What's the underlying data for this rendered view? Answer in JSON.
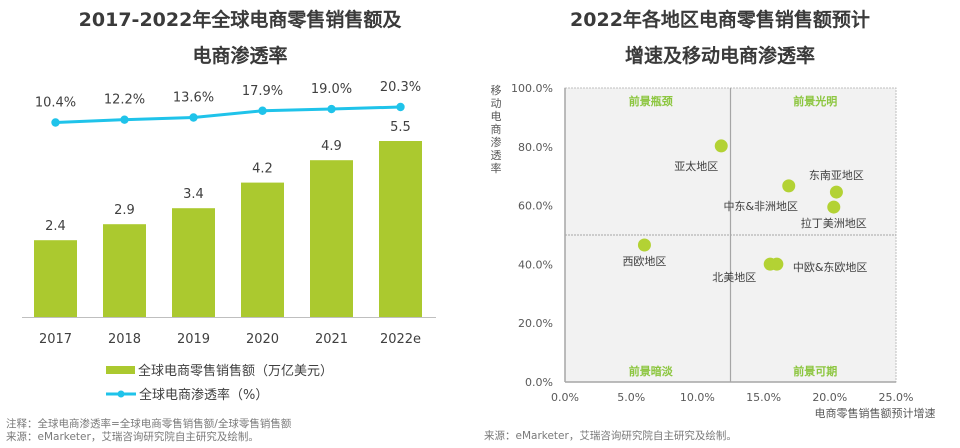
{
  "left": {
    "title_line1": "2017-2022年全球电商零售销售额及",
    "title_line2": "电商渗透率",
    "legend_bar": "全球电商零售销售额（万亿美元）",
    "legend_line": "全球电商渗透率（%）",
    "note": "注释：全球电商渗透率=全球电商零售销售额/全球零售销售额",
    "source": "来源：eMarketer，艾瑞咨询研究院自主研究及绘制。"
  },
  "right": {
    "title_line1": "2022年各地区电商零售销售额预计",
    "title_line2": "增速及移动电商渗透率",
    "source": "来源：eMarketer，艾瑞咨询研究院自主研究及绘制。"
  },
  "colors": {
    "bar": "#abc92f",
    "line": "#1fc3ea",
    "point": "#b3d234",
    "quadrant_label": "#8cc63f",
    "plot_bg": "#f2f2f2"
  },
  "chart_data": [
    {
      "type": "bar",
      "title": "2017-2022年全球电商零售销售额及电商渗透率",
      "categories": [
        "2017",
        "2018",
        "2019",
        "2020",
        "2021",
        "2022e"
      ],
      "series": [
        {
          "name": "全球电商零售销售额（万亿美元）",
          "type": "bar",
          "values": [
            2.4,
            2.9,
            3.4,
            4.2,
            4.9,
            5.5
          ],
          "labels": [
            "2.4",
            "2.9",
            "3.4",
            "4.2",
            "4.9",
            "5.5"
          ]
        },
        {
          "name": "全球电商渗透率（%）",
          "type": "line",
          "values": [
            10.4,
            12.2,
            13.6,
            17.9,
            19.0,
            20.3
          ],
          "labels": [
            "10.4%",
            "12.2%",
            "13.6%",
            "17.9%",
            "19.0%",
            "20.3%"
          ]
        }
      ],
      "xlabel": "",
      "ylabel": "",
      "legend": "bottom",
      "grid": false
    },
    {
      "type": "scatter",
      "title": "2022年各地区电商零售销售额预计增速及移动电商渗透率",
      "xlabel": "电商零售销售额预计增速",
      "ylabel": "移动电商渗透率",
      "xlim": [
        0,
        25
      ],
      "ylim": [
        0,
        100
      ],
      "xticks": [
        "0.0%",
        "5.0%",
        "10.0%",
        "15.0%",
        "20.0%",
        "25.0%"
      ],
      "yticks": [
        "0.0%",
        "20.0%",
        "40.0%",
        "60.0%",
        "80.0%",
        "100.0%"
      ],
      "x_divider": 12.5,
      "y_divider": 50,
      "quadrants": {
        "top_left": "前景瓶颈",
        "top_right": "前景光明",
        "bottom_left": "前景暗淡",
        "bottom_right": "前景可期"
      },
      "points": [
        {
          "name": "亚太地区",
          "x": 11.8,
          "y": 80.3
        },
        {
          "name": "东南亚地区",
          "x": 20.5,
          "y": 64.6
        },
        {
          "name": "中东&非洲地区",
          "x": 16.9,
          "y": 66.7
        },
        {
          "name": "拉丁美洲地区",
          "x": 20.3,
          "y": 59.5
        },
        {
          "name": "西欧地区",
          "x": 6.0,
          "y": 46.6
        },
        {
          "name": "北美地区",
          "x": 15.5,
          "y": 40.1
        },
        {
          "name": "中欧&东欧地区",
          "x": 16.0,
          "y": 40.1
        }
      ],
      "grid": false
    }
  ]
}
